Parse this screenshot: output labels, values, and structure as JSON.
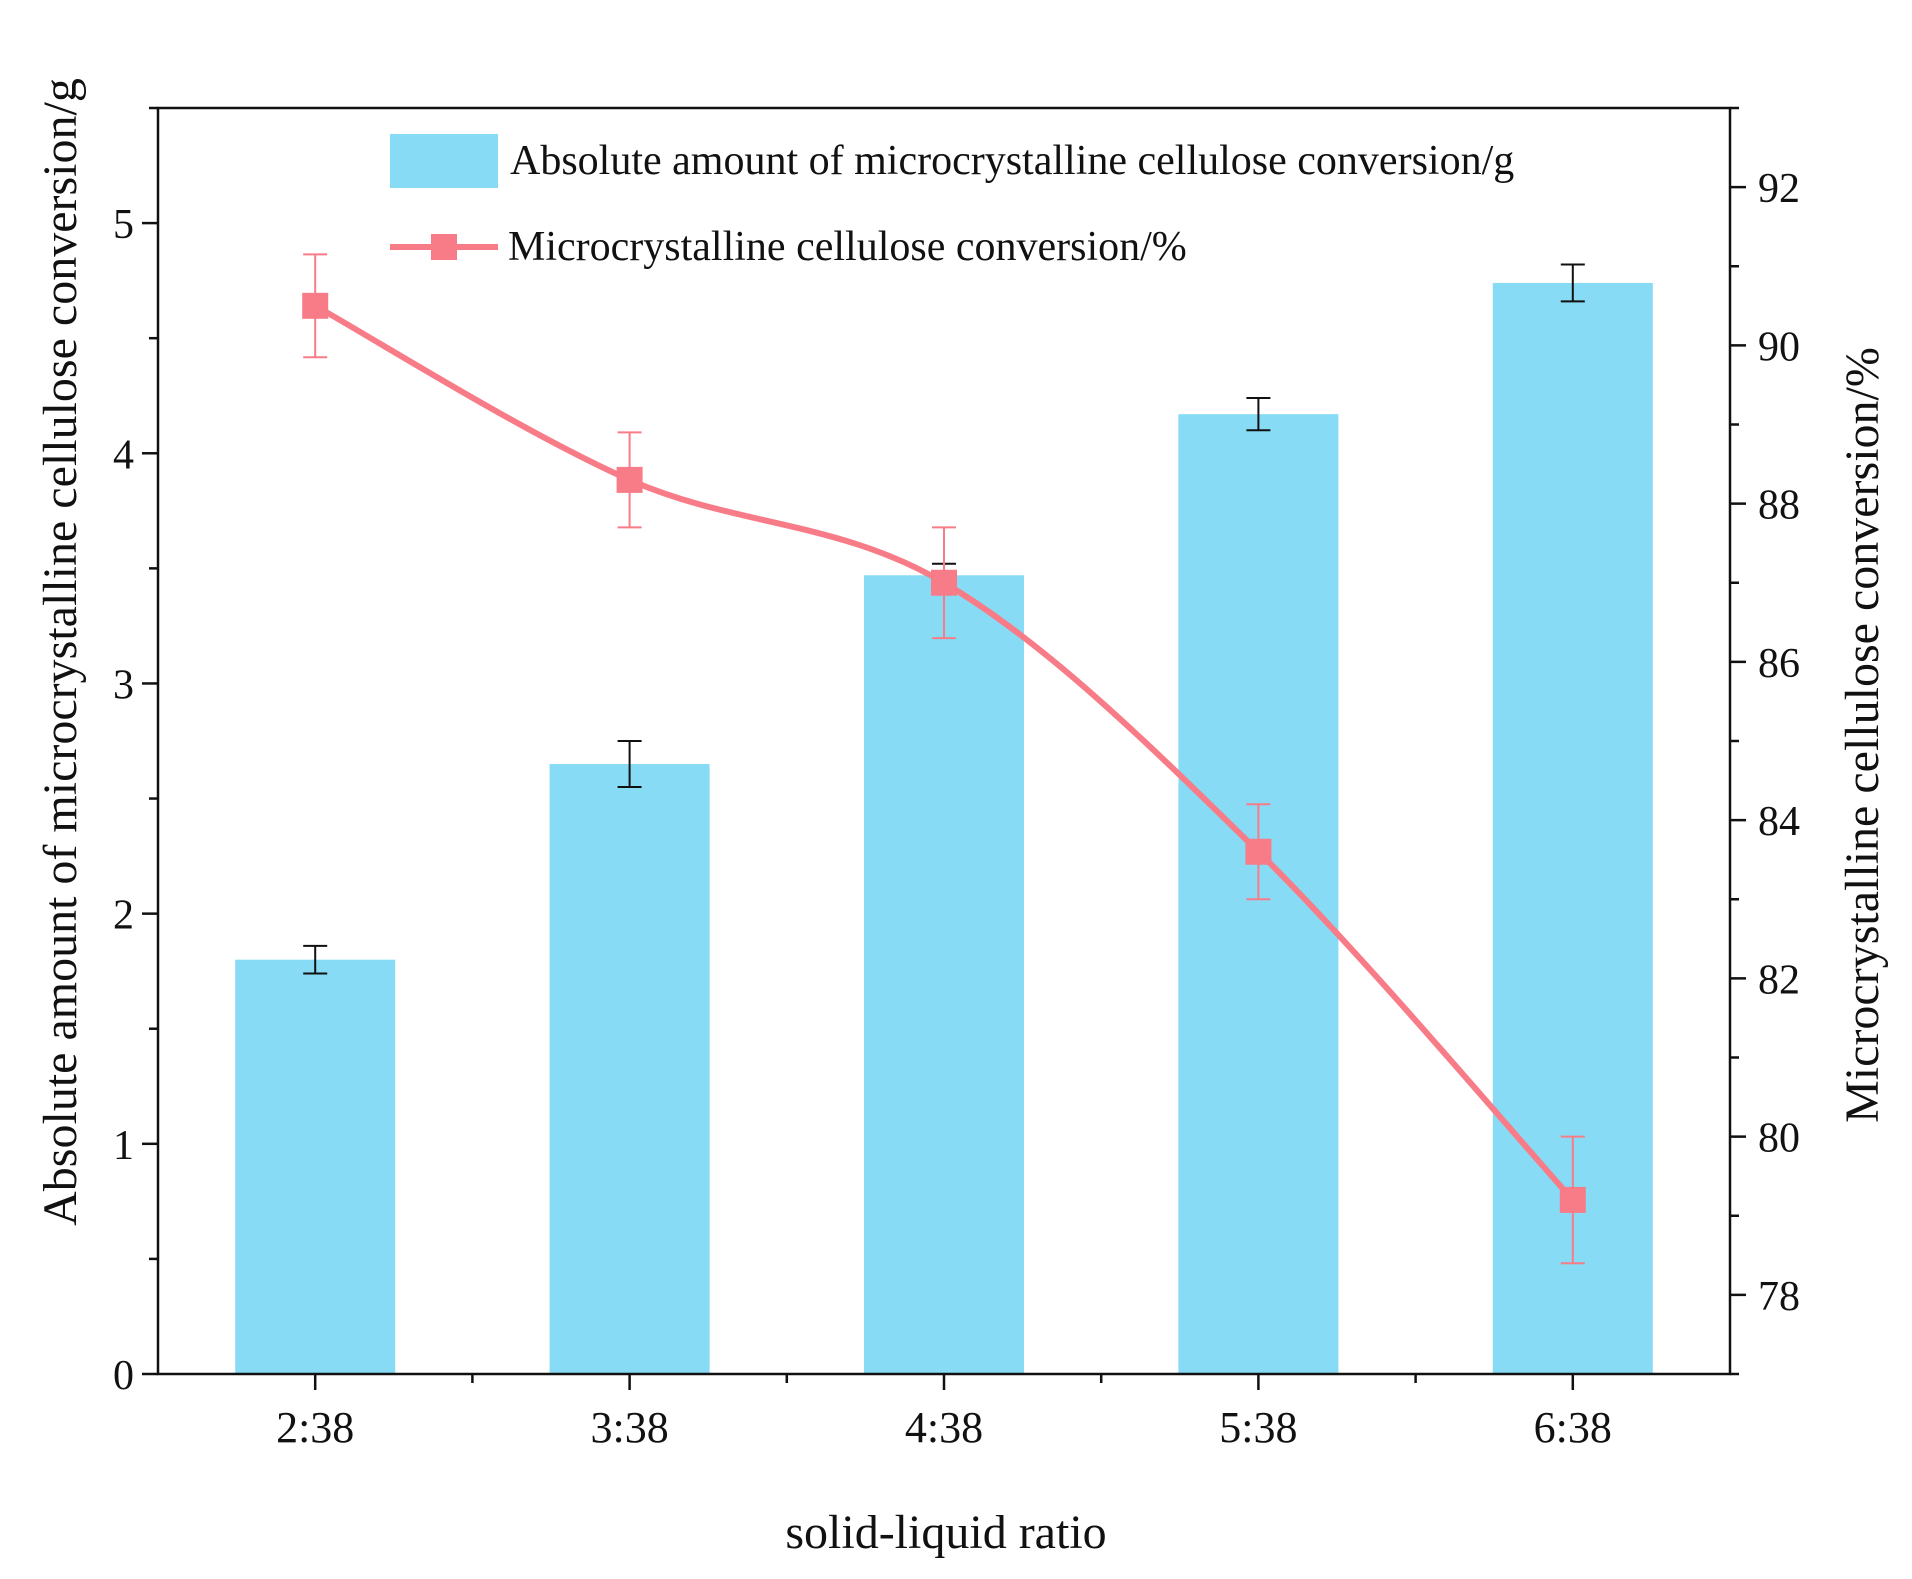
{
  "chart_data": {
    "type": "bar",
    "xlabel": "solid-liquid ratio",
    "categories": [
      "2:38",
      "3:38",
      "4:38",
      "5:38",
      "6:38"
    ],
    "y_left": {
      "label": "Absolute amount of microcrystalline cellulose conversion/g",
      "lim": [
        0,
        5.5
      ],
      "ticks": [
        0,
        1,
        2,
        3,
        4,
        5
      ],
      "minor_step": 0.5
    },
    "y_right": {
      "label": "Microcrystalline cellulose conversion/%",
      "lim": [
        77,
        93
      ],
      "ticks": [
        78,
        80,
        82,
        84,
        86,
        88,
        90,
        92
      ],
      "minor_step": 1
    },
    "series": [
      {
        "name": "Absolute amount of microcrystalline cellulose conversion/g",
        "type": "bar",
        "axis": "left",
        "color": "#87dbf4",
        "values": [
          1.8,
          2.65,
          3.47,
          4.17,
          4.74
        ],
        "errors": [
          0.06,
          0.1,
          0.05,
          0.07,
          0.08
        ]
      },
      {
        "name": "Microcrystalline cellulose conversion/%",
        "type": "line",
        "axis": "right",
        "color": "#f87c88",
        "marker": "square",
        "values": [
          90.5,
          88.3,
          87.0,
          83.6,
          79.2
        ],
        "errors": [
          0.65,
          0.6,
          0.7,
          0.6,
          0.8
        ]
      }
    ],
    "legend_position": "top"
  }
}
